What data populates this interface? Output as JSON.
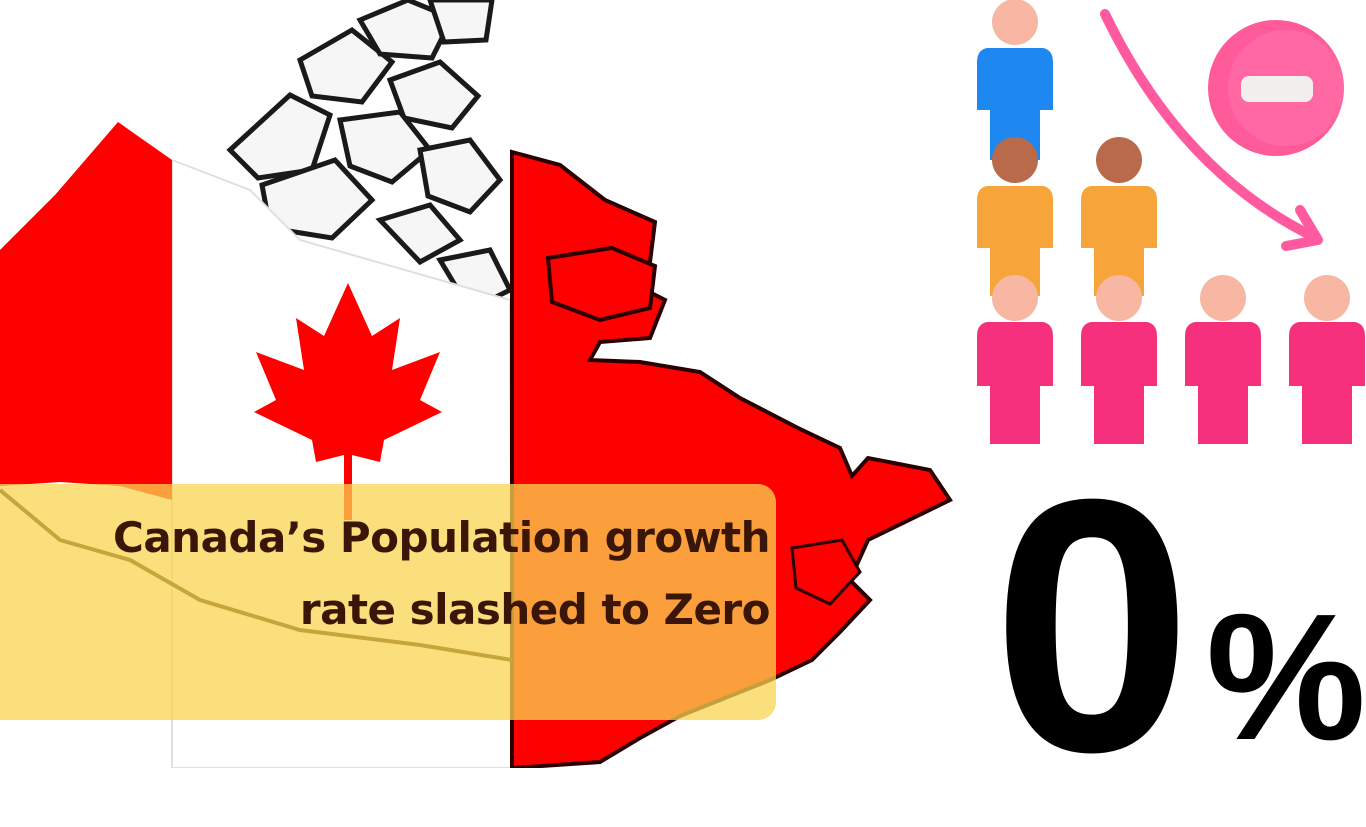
{
  "headline": {
    "line1": "Canada’s Population growth",
    "line2": "rate slashed to Zero"
  },
  "stat": {
    "number": "0",
    "unit": "%"
  },
  "colors": {
    "flag_red": "#ff0000",
    "banner_yellow": "#fad450",
    "headline_text": "#3a1608",
    "person_blue": "#1e88f0",
    "person_orange": "#f7a53a",
    "person_pink": "#f7307e",
    "minus_badge": "#ff5a9a",
    "trend_arrow": "#ff5aa0"
  },
  "icons": [
    "canada-flag-map",
    "maple-leaf-icon",
    "population-decline-icon",
    "minus-icon",
    "trend-down-arrow-icon"
  ]
}
